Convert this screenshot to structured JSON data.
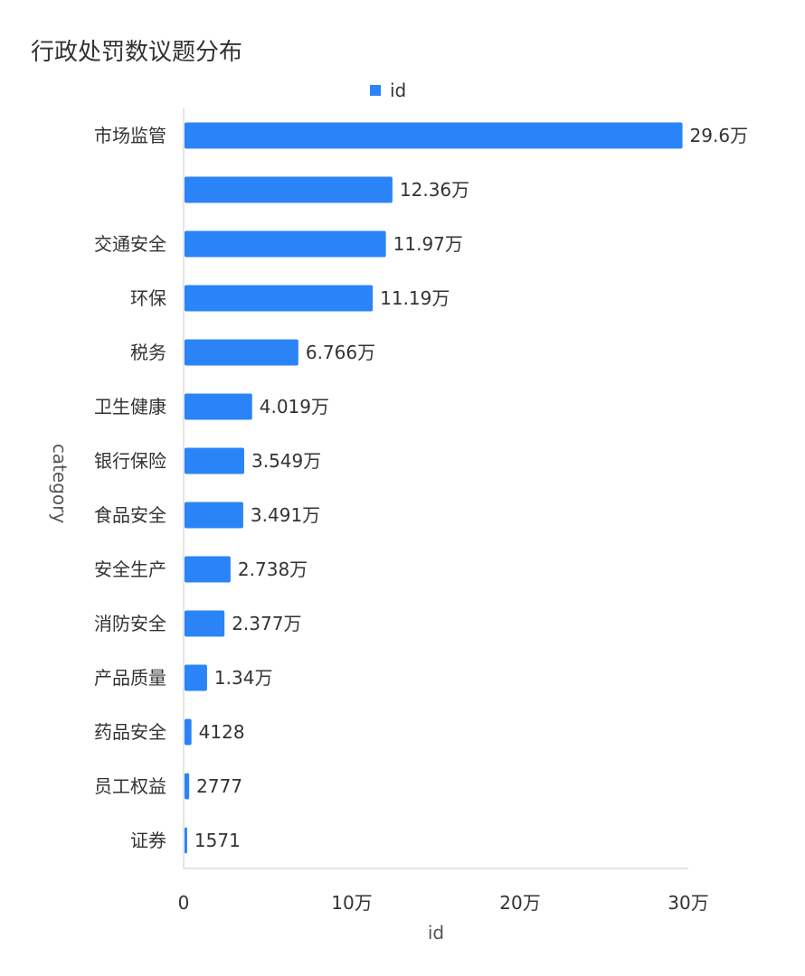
{
  "chart_data": {
    "type": "bar",
    "orientation": "horizontal",
    "title": "行政处罚数议题分布",
    "xlabel": "id",
    "ylabel": "category",
    "legend": {
      "entries": [
        "id"
      ],
      "position": "top"
    },
    "xlim": [
      0,
      300000
    ],
    "x_ticks": [
      {
        "value": 0,
        "label": "0"
      },
      {
        "value": 100000,
        "label": "10万"
      },
      {
        "value": 200000,
        "label": "20万"
      },
      {
        "value": 300000,
        "label": "30万"
      }
    ],
    "grid": false,
    "colors": {
      "bar": "#2B84F7",
      "axis": "#C8C8C8"
    },
    "categories": [
      "市场监管",
      "",
      "交通安全",
      "环保",
      "税务",
      "卫生健康",
      "银行保险",
      "食品安全",
      "安全生产",
      "消防安全",
      "产品质量",
      "药品安全",
      "员工权益",
      "证券"
    ],
    "series": [
      {
        "name": "id",
        "values": [
          296000,
          123600,
          119700,
          111900,
          67660,
          40190,
          35490,
          34910,
          27380,
          23770,
          13400,
          4128,
          2777,
          1571
        ],
        "data_labels": [
          "29.6万",
          "12.36万",
          "11.97万",
          "11.19万",
          "6.766万",
          "4.019万",
          "3.549万",
          "3.491万",
          "2.738万",
          "2.377万",
          "1.34万",
          "4128",
          "2777",
          "1571"
        ]
      }
    ]
  }
}
